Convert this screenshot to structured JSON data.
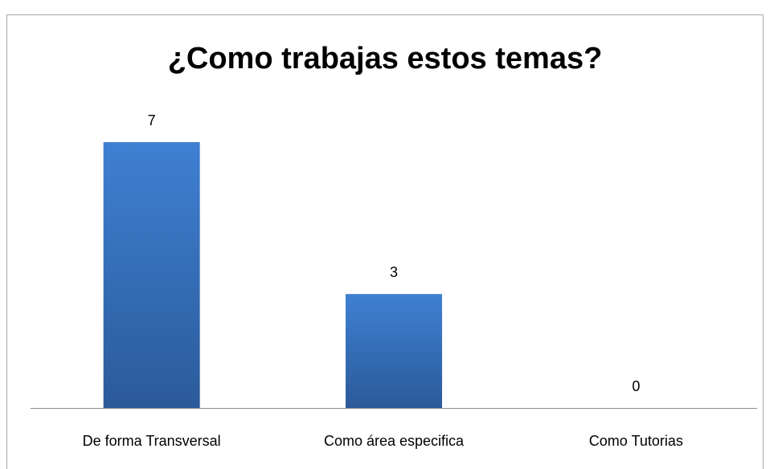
{
  "chart_data": {
    "type": "bar",
    "title": "¿Como trabajas estos temas?",
    "categories": [
      "De forma Transversal",
      "Como área especifica",
      "Como Tutorias"
    ],
    "values": [
      7,
      3,
      0
    ],
    "color": "#3a75c4"
  }
}
